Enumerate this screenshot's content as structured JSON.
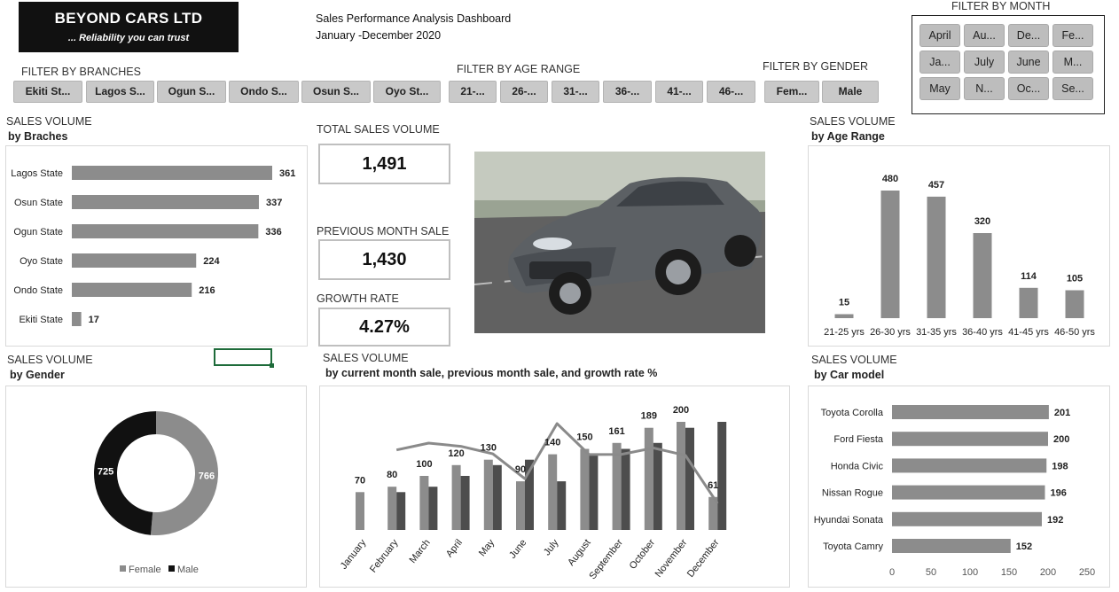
{
  "header": {
    "company": "BEYOND CARS LTD",
    "tagline": "... Reliability you can trust",
    "title": "Sales Performance Analysis Dashboard",
    "period": "January -December 2020"
  },
  "filters": {
    "branches": {
      "title": "FILTER BY BRANCHES",
      "items": [
        "Ekiti St...",
        "Lagos S...",
        "Ogun S...",
        "Ondo S...",
        "Osun S...",
        "Oyo St..."
      ]
    },
    "age": {
      "title": "FILTER BY AGE RANGE",
      "items": [
        "21-...",
        "26-...",
        "31-...",
        "36-...",
        "41-...",
        "46-..."
      ]
    },
    "gender": {
      "title": "FILTER BY GENDER",
      "items": [
        "Fem...",
        "Male"
      ]
    },
    "month": {
      "title": "FILTER BY MONTH",
      "items": [
        "April",
        "Au...",
        "De...",
        "Fe...",
        "Ja...",
        "July",
        "June",
        "M...",
        "May",
        "N...",
        "Oc...",
        "Se..."
      ]
    }
  },
  "kpis": {
    "total": {
      "label": "TOTAL SALES VOLUME",
      "value": "1,491"
    },
    "previous": {
      "label": "PREVIOUS MONTH  SALE",
      "value": "1,430"
    },
    "growth": {
      "label": "GROWTH RATE",
      "value": "4.27%"
    }
  },
  "sections": {
    "branches": {
      "title": "SALES VOLUME",
      "sub": "by Braches"
    },
    "age": {
      "title": "SALES VOLUME",
      "sub": "by Age Range"
    },
    "gender": {
      "title": "SALES VOLUME",
      "sub": "by Gender"
    },
    "monthly": {
      "title": "SALES VOLUME",
      "sub": "by current month sale, previous month sale, and growth rate %"
    },
    "model": {
      "title": "SALES VOLUME",
      "sub": "by Car model"
    }
  },
  "colors": {
    "bar": "#8c8c8c",
    "dark": "#4d4d4d",
    "black": "#111111",
    "grid": "#d9d9d9"
  },
  "chart_data": [
    {
      "id": "branches",
      "type": "bar",
      "orientation": "horizontal",
      "categories": [
        "Lagos State",
        "Osun State",
        "Ogun State",
        "Oyo State",
        "Ondo State",
        "Ekiti State"
      ],
      "values": [
        361,
        337,
        336,
        224,
        216,
        17
      ]
    },
    {
      "id": "age",
      "type": "bar",
      "categories": [
        "21-25 yrs",
        "26-30 yrs",
        "31-35 yrs",
        "36-40 yrs",
        "41-45 yrs",
        "46-50 yrs"
      ],
      "values": [
        15,
        480,
        457,
        320,
        114,
        105
      ]
    },
    {
      "id": "gender",
      "type": "pie",
      "style": "donut",
      "categories": [
        "Female",
        "Male"
      ],
      "values": [
        766,
        725
      ],
      "legend": "bottom"
    },
    {
      "id": "monthly",
      "type": "bar",
      "categories": [
        "January",
        "February",
        "March",
        "April",
        "May",
        "June",
        "July",
        "August",
        "September",
        "October",
        "November",
        "December"
      ],
      "series": [
        {
          "values": [
            70,
            80,
            100,
            120,
            130,
            90,
            140,
            150,
            161,
            189,
            200,
            61
          ]
        },
        {
          "values": [
            null,
            70,
            80,
            100,
            120,
            130,
            90,
            140,
            150,
            161,
            189,
            200
          ]
        },
        {
          "type": "line",
          "values": [
            null,
            14.3,
            25,
            20,
            8.3,
            -30.8,
            55.6,
            7.1,
            7.3,
            17.4,
            5.8,
            -69.5
          ]
        }
      ],
      "data_labels": [
        70,
        80,
        100,
        120,
        130,
        90,
        140,
        150,
        161,
        189,
        200,
        61
      ]
    },
    {
      "id": "model",
      "type": "bar",
      "orientation": "horizontal",
      "categories": [
        "Toyota Corolla",
        "Ford Fiesta",
        "Honda Civic",
        "Nissan Rogue",
        "Hyundai Sonata",
        "Toyota Camry"
      ],
      "values": [
        201,
        200,
        198,
        196,
        192,
        152
      ],
      "xlim": [
        0,
        250
      ],
      "xticks": [
        0,
        50,
        100,
        150,
        200,
        250
      ]
    }
  ]
}
